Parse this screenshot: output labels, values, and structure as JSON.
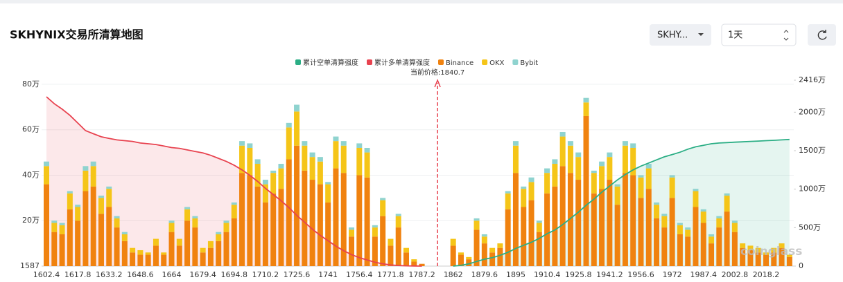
{
  "header": {
    "title": "SKHYNIX交易所清算地图",
    "symbol_select": "SKHY...",
    "interval_select": "1天"
  },
  "chart_data": {
    "type": "bar",
    "current_price_label": "当前价格:1840.7",
    "corner_label": "1587",
    "watermark": "coinglass",
    "categories": [
      "1602.4",
      null,
      null,
      null,
      "1617.8",
      null,
      null,
      null,
      "1633.2",
      null,
      null,
      null,
      "1648.6",
      null,
      null,
      null,
      "1664",
      null,
      null,
      null,
      "1679.4",
      null,
      null,
      null,
      "1694.8",
      null,
      null,
      null,
      "1710.2",
      null,
      null,
      null,
      "1725.6",
      null,
      null,
      null,
      "1741",
      null,
      null,
      null,
      "1756.4",
      null,
      null,
      null,
      "1771.8",
      null,
      null,
      null,
      "1787.2",
      null,
      null,
      null,
      "1862",
      null,
      null,
      null,
      "1879.6",
      null,
      null,
      null,
      "1895",
      null,
      null,
      null,
      "1910.4",
      null,
      null,
      null,
      "1925.8",
      null,
      null,
      null,
      "1941.2",
      null,
      null,
      null,
      "1956.6",
      null,
      null,
      null,
      "1972",
      null,
      null,
      null,
      "1987.4",
      null,
      null,
      null,
      "2002.8",
      null,
      null,
      null,
      "2018.2",
      null,
      null,
      null
    ],
    "ylim": [
      0,
      81.8
    ],
    "yticks": [
      {
        "value": 20,
        "label": "20万"
      },
      {
        "value": 40,
        "label": "40万"
      },
      {
        "value": 60,
        "label": "60万"
      },
      {
        "value": 80,
        "label": "80万"
      }
    ],
    "y2lim": [
      0,
      2416
    ],
    "y2ticks": [
      0,
      {
        "value": 500,
        "label": "500万"
      },
      {
        "value": 1000,
        "label": "1000万"
      },
      {
        "value": 1500,
        "label": "1500万"
      },
      {
        "value": 2000,
        "label": "2000万"
      },
      {
        "value": 2416,
        "label": "2416万"
      }
    ],
    "grid": true,
    "series": [
      {
        "name": "累计空单清算强度",
        "type": "line",
        "axis": "y2",
        "color": "#2bae85",
        "values": [
          null,
          null,
          null,
          null,
          null,
          null,
          null,
          null,
          null,
          null,
          null,
          null,
          null,
          null,
          null,
          null,
          null,
          null,
          null,
          null,
          null,
          null,
          null,
          null,
          null,
          null,
          null,
          null,
          null,
          null,
          null,
          null,
          null,
          null,
          null,
          null,
          null,
          null,
          null,
          null,
          null,
          null,
          null,
          null,
          null,
          null,
          null,
          null,
          null,
          null,
          null,
          null,
          0,
          10,
          30,
          60,
          90,
          110,
          140,
          180,
          230,
          270,
          310,
          360,
          420,
          470,
          540,
          620,
          700,
          790,
          870,
          960,
          1040,
          1120,
          1190,
          1250,
          1300,
          1340,
          1380,
          1420,
          1450,
          1480,
          1520,
          1550,
          1570,
          1590,
          1600,
          1605,
          1610,
          1615,
          1620,
          1625,
          1630,
          1635,
          1640,
          1645
        ]
      },
      {
        "name": "累计多单清算强度",
        "type": "line",
        "axis": "y2",
        "color": "#e8424f",
        "values": [
          2200,
          2110,
          2040,
          1960,
          1860,
          1760,
          1720,
          1680,
          1660,
          1640,
          1630,
          1620,
          1600,
          1590,
          1580,
          1560,
          1540,
          1530,
          1510,
          1490,
          1470,
          1440,
          1400,
          1360,
          1310,
          1250,
          1180,
          1100,
          1010,
          930,
          850,
          760,
          660,
          570,
          480,
          400,
          330,
          260,
          200,
          150,
          110,
          80,
          50,
          30,
          15,
          8,
          4,
          2,
          0,
          null,
          null,
          null,
          null,
          null,
          null,
          null,
          null,
          null,
          null,
          null,
          null,
          null,
          null,
          null,
          null,
          null,
          null,
          null,
          null,
          null,
          null,
          null,
          null,
          null,
          null,
          null,
          null,
          null,
          null,
          null,
          null,
          null,
          null,
          null,
          null,
          null,
          null,
          null,
          null,
          null,
          null,
          null,
          null,
          null,
          null,
          null
        ]
      },
      {
        "name": "Binance",
        "type": "bar",
        "color": "#f0820f",
        "values": [
          36,
          15,
          14,
          25,
          20,
          33,
          35,
          23,
          26,
          17,
          11,
          6,
          5,
          5,
          9,
          5,
          15,
          9,
          20,
          17,
          6,
          8,
          11,
          15,
          21,
          41,
          40,
          35,
          28,
          32,
          34,
          47,
          53,
          42,
          38,
          36,
          28,
          43,
          41,
          13,
          40,
          39,
          13,
          22,
          9,
          17,
          6,
          2,
          1,
          null,
          null,
          null,
          9,
          5,
          3,
          16,
          10,
          6,
          8,
          25,
          41,
          26,
          29,
          15,
          32,
          35,
          44,
          41,
          38,
          66,
          32,
          34,
          38,
          27,
          41,
          40,
          30,
          34,
          21,
          17,
          30,
          14,
          13,
          26,
          19,
          10,
          17,
          24,
          15,
          8,
          7,
          6,
          5,
          6,
          8,
          4
        ]
      },
      {
        "name": "OKX",
        "type": "bar",
        "color": "#f5c518",
        "values": [
          8,
          4,
          4,
          7,
          6,
          9,
          9,
          7,
          8,
          4,
          3,
          2,
          2,
          1,
          3,
          1,
          4,
          3,
          5,
          4,
          2,
          3,
          3,
          4,
          6,
          12,
          12,
          10,
          8,
          9,
          9,
          14,
          15,
          11,
          10,
          10,
          8,
          12,
          12,
          3,
          12,
          11,
          4,
          7,
          3,
          5,
          2,
          1,
          0,
          null,
          null,
          null,
          3,
          1,
          1,
          4,
          3,
          2,
          2,
          7,
          12,
          8,
          8,
          4,
          9,
          10,
          13,
          12,
          10,
          6,
          9,
          10,
          10,
          8,
          12,
          12,
          9,
          9,
          6,
          5,
          9,
          4,
          3,
          7,
          5,
          3,
          4,
          7,
          4,
          2,
          2,
          2,
          1,
          2,
          2,
          1
        ]
      },
      {
        "name": "Bybit",
        "type": "bar",
        "color": "#8fd3cf",
        "values": [
          2,
          1,
          1,
          1,
          1,
          2,
          2,
          1,
          1,
          1,
          1,
          0,
          0,
          0,
          0,
          0,
          1,
          0,
          1,
          1,
          0,
          0,
          1,
          1,
          1,
          2,
          2,
          2,
          2,
          1,
          2,
          2,
          3,
          2,
          2,
          2,
          1,
          2,
          2,
          1,
          2,
          2,
          1,
          1,
          0,
          1,
          0,
          0,
          0,
          null,
          null,
          null,
          0,
          0,
          0,
          1,
          1,
          0,
          0,
          1,
          2,
          1,
          2,
          1,
          2,
          2,
          2,
          2,
          2,
          2,
          1,
          2,
          2,
          1,
          2,
          2,
          1,
          2,
          1,
          1,
          1,
          1,
          1,
          1,
          1,
          1,
          1,
          1,
          1,
          0,
          0,
          0,
          0,
          0,
          0,
          0
        ]
      }
    ]
  }
}
